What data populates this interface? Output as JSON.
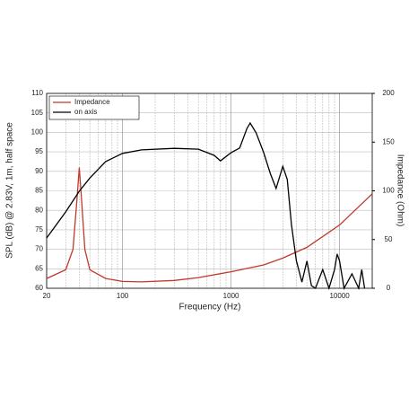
{
  "chart_data": {
    "type": "line",
    "x_label": "Frequency (Hz)",
    "y_label": "SPL (dB) @ 2.83V, 1m, half space",
    "y2_label": "Impedance (Ohm)",
    "log_x": true,
    "grid": true,
    "legend": "top-left",
    "xlim": [
      20,
      20000
    ],
    "xticks": [
      20,
      100,
      1000,
      10000
    ],
    "xminor": [
      30,
      40,
      50,
      60,
      70,
      80,
      90,
      200,
      300,
      400,
      500,
      600,
      700,
      800,
      900,
      2000,
      3000,
      4000,
      5000,
      6000,
      7000,
      8000,
      9000
    ],
    "ylim": [
      60,
      110
    ],
    "yticks": [
      60,
      65,
      70,
      75,
      80,
      85,
      90,
      95,
      100,
      105,
      110
    ],
    "y2lim": [
      0,
      200
    ],
    "y2ticks": [
      0,
      50,
      100,
      150,
      200
    ],
    "series": [
      {
        "name": "Impedance",
        "color": "#c0392b",
        "axis": "y2",
        "x": [
          20,
          30,
          35,
          38,
          40,
          42,
          45,
          50,
          70,
          100,
          150,
          300,
          500,
          1000,
          2000,
          3000,
          5000,
          10000,
          20000
        ],
        "values": [
          10,
          19,
          40,
          90,
          124,
          90,
          40,
          19,
          10,
          7,
          6.5,
          8,
          11,
          17,
          24,
          31,
          42,
          65,
          97
        ]
      },
      {
        "name": "on axis",
        "color": "#000000",
        "x": [
          20,
          30,
          40,
          50,
          70,
          100,
          150,
          300,
          500,
          700,
          800,
          1000,
          1200,
          1400,
          1500,
          1700,
          2000,
          2300,
          2600,
          3000,
          3300,
          3600,
          4000,
          4500,
          5000,
          5500,
          6000,
          7000,
          8000,
          9000,
          9500,
          10000,
          11000,
          13000,
          15000,
          16000,
          17000
        ],
        "values": [
          72.9,
          79.6,
          84.9,
          88.3,
          92.5,
          94.6,
          95.5,
          95.9,
          95.7,
          94.1,
          92.7,
          94.8,
          96,
          101,
          102.4,
          99.9,
          94.8,
          89.5,
          85.6,
          91.3,
          87.9,
          76.4,
          67.1,
          61.6,
          67,
          60.7,
          60,
          64.8,
          60,
          64.8,
          68.8,
          67,
          60,
          63.7,
          60,
          64.8,
          60
        ]
      }
    ]
  }
}
